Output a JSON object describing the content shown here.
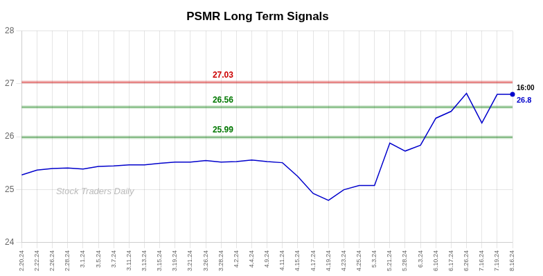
{
  "chart_data": {
    "type": "line",
    "title": "PSMR Long Term Signals",
    "categories": [
      "2.20.24",
      "2.22.24",
      "2.26.24",
      "2.28.24",
      "3.1.24",
      "3.5.24",
      "3.7.24",
      "3.11.24",
      "3.13.24",
      "3.15.24",
      "3.19.24",
      "3.21.24",
      "3.26.24",
      "3.28.24",
      "4.2.24",
      "4.4.24",
      "4.9.24",
      "4.11.24",
      "4.15.24",
      "4.17.24",
      "4.19.24",
      "4.23.24",
      "4.25.24",
      "5.3.24",
      "5.21.24",
      "5.28.24",
      "6.3.24",
      "6.10.24",
      "6.17.24",
      "6.26.24",
      "7.16.24",
      "7.19.24",
      "8.16.24"
    ],
    "values": [
      25.28,
      25.37,
      25.4,
      25.41,
      25.39,
      25.44,
      25.45,
      25.47,
      25.47,
      25.5,
      25.52,
      25.52,
      25.55,
      25.52,
      25.53,
      25.56,
      25.53,
      25.51,
      25.25,
      24.93,
      24.8,
      25.0,
      25.08,
      25.08,
      25.88,
      25.73,
      25.84,
      26.35,
      26.48,
      26.82,
      26.26,
      26.8,
      26.8
    ],
    "color": "#0000cc",
    "ylim": [
      24,
      28
    ],
    "yticks": [
      24,
      25,
      26,
      27,
      28
    ],
    "grid": true,
    "annotations": [
      {
        "type": "hline",
        "y": 27.03,
        "text": "27.03",
        "color": "#cc0000"
      },
      {
        "type": "hline",
        "y": 26.56,
        "text": "26.56",
        "color": "#007700"
      },
      {
        "type": "hline",
        "y": 25.99,
        "text": "25.99",
        "color": "#007700"
      },
      {
        "type": "point_label",
        "x": "8.16.24",
        "y": 26.8,
        "color": "#0000cc",
        "texts": [
          {
            "text": "16:00",
            "color": "#000000"
          },
          {
            "text": "26.8",
            "color": "#0000cc"
          }
        ]
      },
      {
        "type": "watermark",
        "text": "Stock Traders Daily",
        "color": "#bbbbbb"
      }
    ]
  }
}
